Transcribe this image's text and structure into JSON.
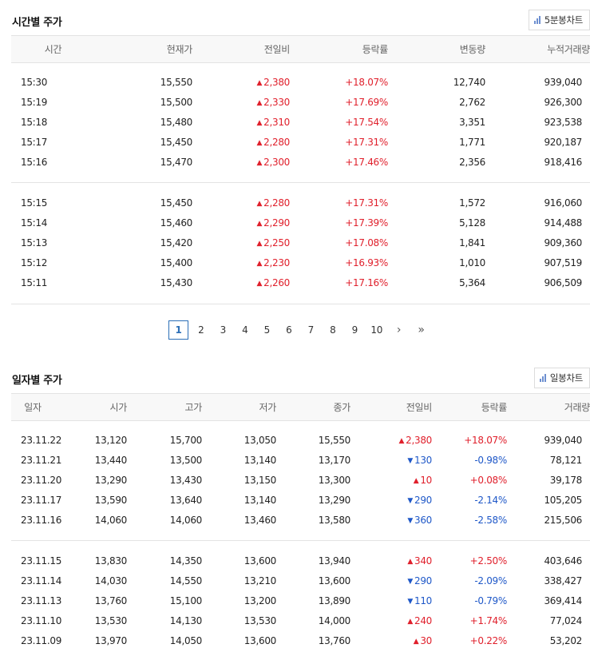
{
  "hourly": {
    "title": "시간별 주가",
    "chart_button": "5분봉차트",
    "columns": [
      "시간",
      "현재가",
      "전일비",
      "등락률",
      "변동량",
      "누적거래량"
    ],
    "groups": [
      [
        {
          "time": "15:30",
          "price": "15,550",
          "dir": "up",
          "change": "2,380",
          "rate": "+18.07%",
          "vol": "12,740",
          "cum": "939,040"
        },
        {
          "time": "15:19",
          "price": "15,500",
          "dir": "up",
          "change": "2,330",
          "rate": "+17.69%",
          "vol": "2,762",
          "cum": "926,300"
        },
        {
          "time": "15:18",
          "price": "15,480",
          "dir": "up",
          "change": "2,310",
          "rate": "+17.54%",
          "vol": "3,351",
          "cum": "923,538"
        },
        {
          "time": "15:17",
          "price": "15,450",
          "dir": "up",
          "change": "2,280",
          "rate": "+17.31%",
          "vol": "1,771",
          "cum": "920,187"
        },
        {
          "time": "15:16",
          "price": "15,470",
          "dir": "up",
          "change": "2,300",
          "rate": "+17.46%",
          "vol": "2,356",
          "cum": "918,416"
        }
      ],
      [
        {
          "time": "15:15",
          "price": "15,450",
          "dir": "up",
          "change": "2,280",
          "rate": "+17.31%",
          "vol": "1,572",
          "cum": "916,060"
        },
        {
          "time": "15:14",
          "price": "15,460",
          "dir": "up",
          "change": "2,290",
          "rate": "+17.39%",
          "vol": "5,128",
          "cum": "914,488"
        },
        {
          "time": "15:13",
          "price": "15,420",
          "dir": "up",
          "change": "2,250",
          "rate": "+17.08%",
          "vol": "1,841",
          "cum": "909,360"
        },
        {
          "time": "15:12",
          "price": "15,400",
          "dir": "up",
          "change": "2,230",
          "rate": "+16.93%",
          "vol": "1,010",
          "cum": "907,519"
        },
        {
          "time": "15:11",
          "price": "15,430",
          "dir": "up",
          "change": "2,260",
          "rate": "+17.16%",
          "vol": "5,364",
          "cum": "906,509"
        }
      ]
    ]
  },
  "pagination": {
    "pages": [
      "1",
      "2",
      "3",
      "4",
      "5",
      "6",
      "7",
      "8",
      "9",
      "10"
    ],
    "active": "1",
    "next_icon": "chevron-right-icon",
    "last_icon": "double-chevron-right-icon"
  },
  "daily": {
    "title": "일자별 주가",
    "chart_button": "일봉차트",
    "columns": [
      "일자",
      "시가",
      "고가",
      "저가",
      "종가",
      "전일비",
      "등락률",
      "거래량"
    ],
    "groups": [
      [
        {
          "date": "23.11.22",
          "open": "13,120",
          "high": "15,700",
          "low": "13,050",
          "close": "15,550",
          "dir": "up",
          "change": "2,380",
          "rate": "+18.07%",
          "vol": "939,040"
        },
        {
          "date": "23.11.21",
          "open": "13,440",
          "high": "13,500",
          "low": "13,140",
          "close": "13,170",
          "dir": "down",
          "change": "130",
          "rate": "-0.98%",
          "vol": "78,121"
        },
        {
          "date": "23.11.20",
          "open": "13,290",
          "high": "13,430",
          "low": "13,150",
          "close": "13,300",
          "dir": "up",
          "change": "10",
          "rate": "+0.08%",
          "vol": "39,178"
        },
        {
          "date": "23.11.17",
          "open": "13,590",
          "high": "13,640",
          "low": "13,140",
          "close": "13,290",
          "dir": "down",
          "change": "290",
          "rate": "-2.14%",
          "vol": "105,205"
        },
        {
          "date": "23.11.16",
          "open": "14,060",
          "high": "14,060",
          "low": "13,460",
          "close": "13,580",
          "dir": "down",
          "change": "360",
          "rate": "-2.58%",
          "vol": "215,506"
        }
      ],
      [
        {
          "date": "23.11.15",
          "open": "13,830",
          "high": "14,350",
          "low": "13,600",
          "close": "13,940",
          "dir": "up",
          "change": "340",
          "rate": "+2.50%",
          "vol": "403,646"
        },
        {
          "date": "23.11.14",
          "open": "14,030",
          "high": "14,550",
          "low": "13,210",
          "close": "13,600",
          "dir": "down",
          "change": "290",
          "rate": "-2.09%",
          "vol": "338,427"
        },
        {
          "date": "23.11.13",
          "open": "13,760",
          "high": "15,100",
          "low": "13,200",
          "close": "13,890",
          "dir": "down",
          "change": "110",
          "rate": "-0.79%",
          "vol": "369,414"
        },
        {
          "date": "23.11.10",
          "open": "13,530",
          "high": "14,130",
          "low": "13,530",
          "close": "14,000",
          "dir": "up",
          "change": "240",
          "rate": "+1.74%",
          "vol": "77,024"
        },
        {
          "date": "23.11.09",
          "open": "13,970",
          "high": "14,050",
          "low": "13,600",
          "close": "13,760",
          "dir": "up",
          "change": "30",
          "rate": "+0.22%",
          "vol": "53,202"
        }
      ]
    ]
  },
  "colors": {
    "up": "#e0202c",
    "down": "#1f58c8",
    "accent": "#2c6fb7"
  }
}
